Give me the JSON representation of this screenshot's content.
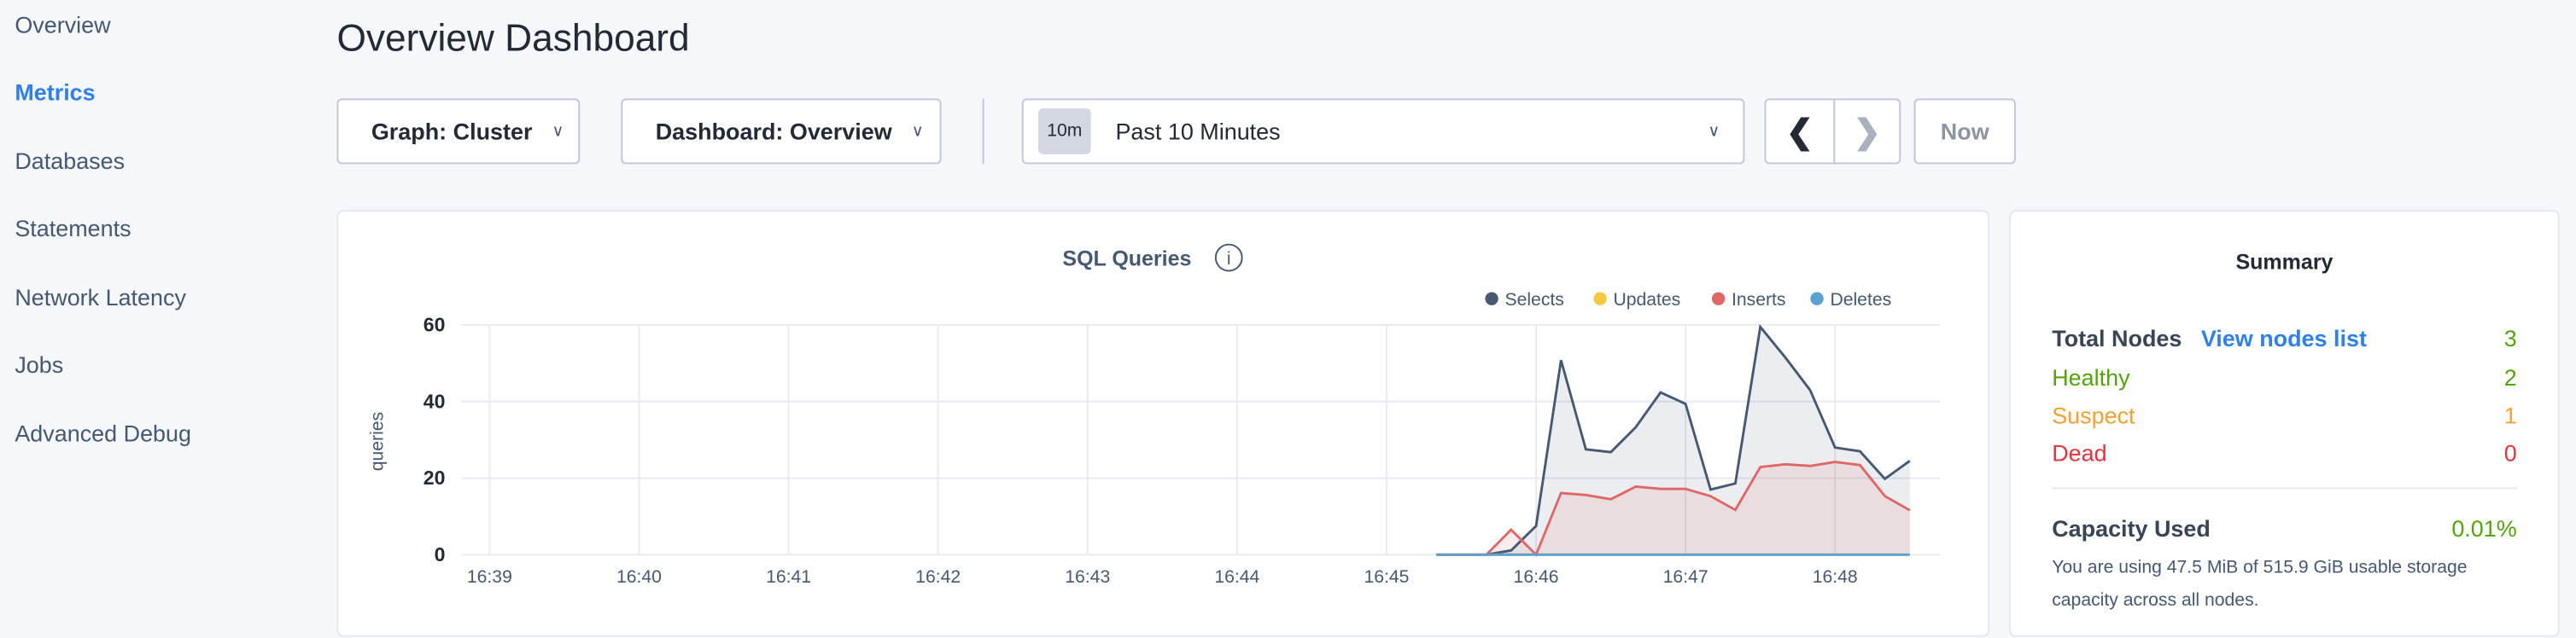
{
  "sidebar": {
    "items": [
      {
        "label": "Overview"
      },
      {
        "label": "Metrics",
        "active": true
      },
      {
        "label": "Databases"
      },
      {
        "label": "Statements"
      },
      {
        "label": "Network Latency"
      },
      {
        "label": "Jobs"
      },
      {
        "label": "Advanced Debug"
      }
    ]
  },
  "header": {
    "title": "Overview Dashboard"
  },
  "toolbar": {
    "graph": "Graph: Cluster",
    "dashboard": "Dashboard: Overview",
    "time_badge": "10m",
    "time_range": "Past 10 Minutes",
    "prev_icon": "chevron-left-icon",
    "next_icon": "chevron-right-icon",
    "now": "Now"
  },
  "chart_data": {
    "type": "area",
    "title": "SQL Queries",
    "ylabel": "queries",
    "xlabel": "",
    "ylim": [
      0,
      60
    ],
    "yticks": [
      0,
      20,
      40,
      60
    ],
    "xticks": [
      "16:39",
      "16:40",
      "16:41",
      "16:42",
      "16:43",
      "16:44",
      "16:45",
      "16:46",
      "16:47",
      "16:48"
    ],
    "grid": true,
    "legend": "top-right",
    "x": [
      "16:45:20",
      "16:45:30",
      "16:45:40",
      "16:45:50",
      "16:46:00",
      "16:46:10",
      "16:46:20",
      "16:46:30",
      "16:46:40",
      "16:46:50",
      "16:47:00",
      "16:47:10",
      "16:47:20",
      "16:47:30",
      "16:47:40",
      "16:47:50",
      "16:48:00",
      "16:48:10",
      "16:48:20",
      "16:48:30"
    ],
    "series": [
      {
        "name": "Selects",
        "color": "#475872",
        "values": [
          0,
          0,
          0,
          1.1,
          7.5,
          50.8,
          27.5,
          26.8,
          33.3,
          42.4,
          39.4,
          17,
          18.6,
          59.5,
          51.5,
          43,
          28,
          27,
          19.8,
          24.5
        ]
      },
      {
        "name": "Updates",
        "color": "#f5c842",
        "values": [
          0,
          0,
          0,
          0,
          0,
          0,
          0,
          0,
          0,
          0,
          0,
          0,
          0,
          0,
          0,
          0,
          0,
          0,
          0,
          0
        ]
      },
      {
        "name": "Inserts",
        "color": "#e06767",
        "values": [
          0,
          0,
          0,
          6.5,
          0,
          16.1,
          15.6,
          14.5,
          17.8,
          17.2,
          17.2,
          15.3,
          11.7,
          22.9,
          23.6,
          23.2,
          24.2,
          23.4,
          15.3,
          11.6
        ]
      },
      {
        "name": "Deletes",
        "color": "#5b9fd3",
        "values": [
          0,
          0,
          0,
          0,
          0,
          0,
          0,
          0,
          0,
          0,
          0,
          0,
          0,
          0,
          0,
          0,
          0,
          0,
          0,
          0
        ]
      }
    ]
  },
  "summary": {
    "title": "Summary",
    "total_label": "Total Nodes",
    "view_link": "View nodes list",
    "total": "3",
    "healthy_label": "Healthy",
    "healthy": "2",
    "suspect_label": "Suspect",
    "suspect": "1",
    "dead_label": "Dead",
    "dead": "0",
    "capacity_label": "Capacity Used",
    "capacity": "0.01%",
    "capacity_text": "You are using 47.5 MiB of 515.9 GiB usable storage capacity across all nodes.",
    "colors": {
      "healthy": "#54a30d",
      "suspect": "#f5a033",
      "dead": "#e5323d",
      "link": "#2f80ed"
    }
  }
}
